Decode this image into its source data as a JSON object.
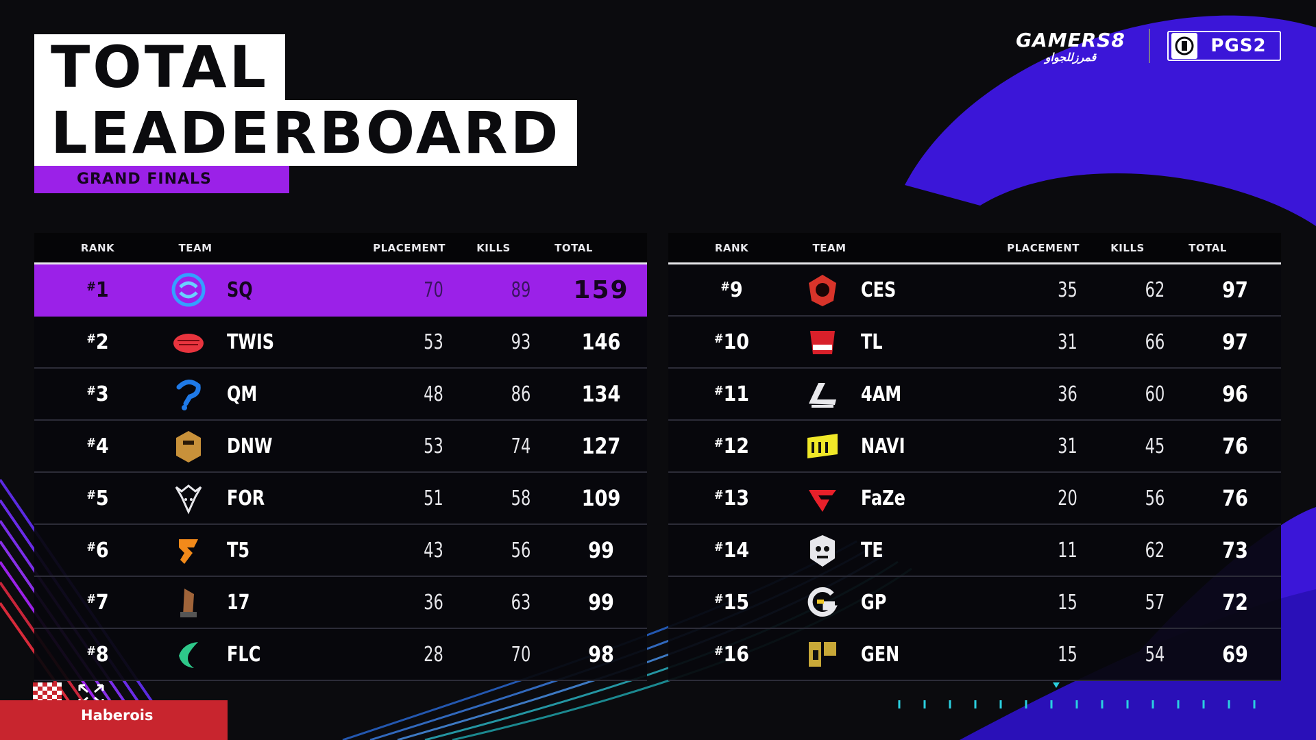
{
  "title": {
    "line1": "TOTAL",
    "line2": "LEADERBOARD",
    "subtitle": "GRAND FINALS"
  },
  "brand": {
    "gamers_top": "GAMERS8",
    "gamers_sub": "قمرزللجواو",
    "pgs": "PGS2"
  },
  "columns": {
    "rank": "RANK",
    "team": "TEAM",
    "placement": "PLACEMENT",
    "kills": "KILLS",
    "total": "TOTAL"
  },
  "colors": {
    "accent_purple": "#9b21e8",
    "swoosh_blue": "#3b16d8",
    "streamer_red": "#c8252e"
  },
  "left_rows": [
    {
      "rank": "1",
      "team": "SQ",
      "placement": "70",
      "kills": "89",
      "total": "159",
      "logo": "sq-logo-icon"
    },
    {
      "rank": "2",
      "team": "TWIS",
      "placement": "53",
      "kills": "93",
      "total": "146",
      "logo": "twis-logo-icon"
    },
    {
      "rank": "3",
      "team": "QM",
      "placement": "48",
      "kills": "86",
      "total": "134",
      "logo": "qm-logo-icon"
    },
    {
      "rank": "4",
      "team": "DNW",
      "placement": "53",
      "kills": "74",
      "total": "127",
      "logo": "dnw-logo-icon"
    },
    {
      "rank": "5",
      "team": "FOR",
      "placement": "51",
      "kills": "58",
      "total": "109",
      "logo": "for-logo-icon"
    },
    {
      "rank": "6",
      "team": "T5",
      "placement": "43",
      "kills": "56",
      "total": "99",
      "logo": "t5-logo-icon"
    },
    {
      "rank": "7",
      "team": "17",
      "placement": "36",
      "kills": "63",
      "total": "99",
      "logo": "17-logo-icon"
    },
    {
      "rank": "8",
      "team": "FLC",
      "placement": "28",
      "kills": "70",
      "total": "98",
      "logo": "flc-logo-icon"
    }
  ],
  "right_rows": [
    {
      "rank": "9",
      "team": "CES",
      "placement": "35",
      "kills": "62",
      "total": "97",
      "logo": "ces-logo-icon"
    },
    {
      "rank": "10",
      "team": "TL",
      "placement": "31",
      "kills": "66",
      "total": "97",
      "logo": "tl-logo-icon"
    },
    {
      "rank": "11",
      "team": "4AM",
      "placement": "36",
      "kills": "60",
      "total": "96",
      "logo": "4am-logo-icon"
    },
    {
      "rank": "12",
      "team": "NAVI",
      "placement": "31",
      "kills": "45",
      "total": "76",
      "logo": "navi-logo-icon"
    },
    {
      "rank": "13",
      "team": "FaZe",
      "placement": "20",
      "kills": "56",
      "total": "76",
      "logo": "faze-logo-icon"
    },
    {
      "rank": "14",
      "team": "TE",
      "placement": "11",
      "kills": "62",
      "total": "73",
      "logo": "te-logo-icon"
    },
    {
      "rank": "15",
      "team": "GP",
      "placement": "15",
      "kills": "57",
      "total": "72",
      "logo": "gp-logo-icon"
    },
    {
      "rank": "16",
      "team": "GEN",
      "placement": "15",
      "kills": "54",
      "total": "69",
      "logo": "gen-logo-icon"
    }
  ],
  "streamer": {
    "name": "Haberois"
  }
}
